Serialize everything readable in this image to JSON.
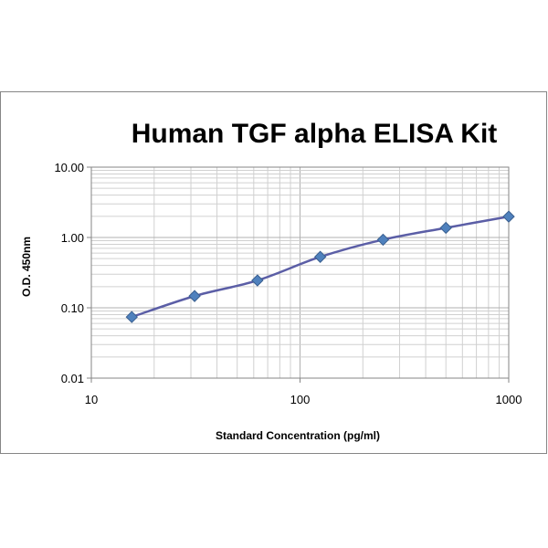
{
  "chart_data": {
    "type": "line",
    "title": "Human TGF alpha ELISA Kit",
    "xlabel": "Standard Concentration (pg/ml)",
    "ylabel": "O.D. 450nm",
    "x_scale": "log",
    "y_scale": "log",
    "xlim": [
      10,
      1000
    ],
    "ylim": [
      0.01,
      10
    ],
    "x_ticks": [
      "10",
      "100",
      "1000"
    ],
    "y_ticks": [
      "0.01",
      "0.10",
      "1.00",
      "10.00"
    ],
    "grid": true,
    "legend": "none",
    "series": [
      {
        "x": [
          15.625,
          31.25,
          62.5,
          125,
          250,
          500,
          1000
        ],
        "y": [
          0.074,
          0.147,
          0.245,
          0.53,
          0.93,
          1.37,
          1.98
        ],
        "color": "#4f81bd",
        "line_color": "#5b5ea6",
        "marker": "diamond",
        "smooth": true
      }
    ]
  }
}
